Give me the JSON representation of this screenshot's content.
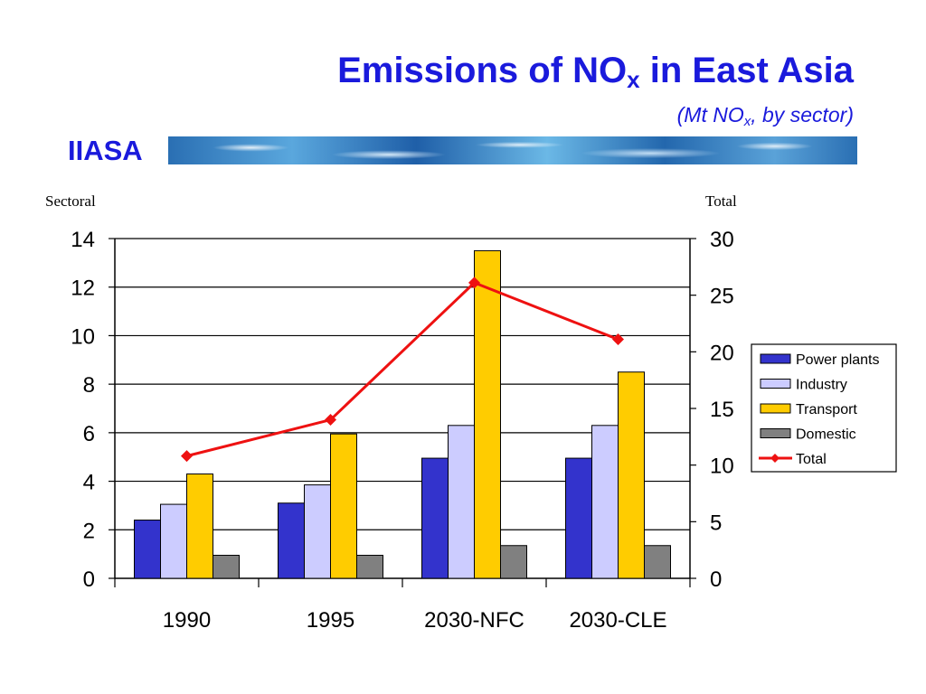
{
  "header": {
    "title_main": "Emissions of NO",
    "title_sub": "x",
    "title_rest": " in East Asia",
    "subtitle_open": "(Mt NO",
    "subtitle_sub": "x",
    "subtitle_rest": ", by sector)",
    "brand": "IIASA"
  },
  "chart_data": {
    "type": "bar",
    "categories": [
      "1990",
      "1995",
      "2030-NFC",
      "2030-CLE"
    ],
    "series": [
      {
        "name": "Power plants",
        "values": [
          2.4,
          3.1,
          4.95,
          4.95
        ],
        "color": "#3333cc"
      },
      {
        "name": "Industry",
        "values": [
          3.05,
          3.85,
          6.3,
          6.3
        ],
        "color": "#ccccff"
      },
      {
        "name": "Transport",
        "values": [
          4.3,
          5.95,
          13.5,
          8.5
        ],
        "color": "#ffcc00"
      },
      {
        "name": "Domestic",
        "values": [
          0.95,
          0.95,
          1.35,
          1.35
        ],
        "color": "#808080"
      }
    ],
    "line_series": {
      "name": "Total",
      "axis": "right",
      "values": [
        10.8,
        14.0,
        26.1,
        21.1
      ],
      "color": "#ee1111"
    },
    "left_axis": {
      "label": "Sectoral",
      "range": [
        0,
        14
      ],
      "ticks": [
        "0",
        "2",
        "4",
        "6",
        "8",
        "10",
        "12",
        "14"
      ]
    },
    "right_axis": {
      "label": "Total",
      "range": [
        0,
        30
      ],
      "ticks": [
        "0",
        "5",
        "10",
        "15",
        "20",
        "25",
        "30"
      ]
    },
    "grid": "horizontal",
    "legend_position": "right"
  }
}
